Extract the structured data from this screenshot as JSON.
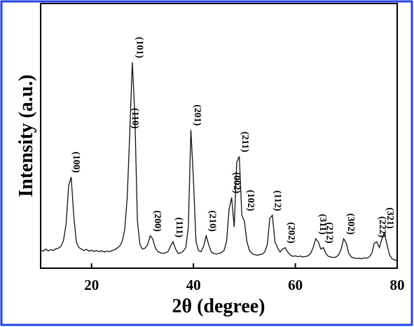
{
  "chart_data": {
    "type": "line",
    "xlabel": "2θ (degree)",
    "ylabel": "Intensity (a.u.)",
    "xlim": [
      10,
      80
    ],
    "ylim": [
      0,
      90
    ],
    "xticks": [
      20,
      40,
      60,
      80
    ],
    "x": [
      10,
      10.5,
      11,
      11.5,
      12,
      12.5,
      13,
      13.5,
      14,
      14.5,
      15,
      15.5,
      16,
      16.5,
      17,
      17.5,
      18,
      18.5,
      19,
      19.5,
      20,
      20.5,
      21,
      21.5,
      22,
      22.5,
      23,
      23.5,
      24,
      24.5,
      25,
      25.5,
      26,
      26.5,
      27,
      27.5,
      28,
      28.5,
      29,
      29.5,
      30,
      30.5,
      31,
      31.5,
      32,
      32.5,
      33,
      33.5,
      34,
      34.5,
      35,
      35.5,
      36,
      36.5,
      37,
      37.5,
      38,
      38.5,
      39,
      39.5,
      40,
      40.5,
      41,
      41.5,
      42,
      42.5,
      43,
      43.5,
      44,
      44.5,
      45,
      45.5,
      46,
      46.5,
      47,
      47.5,
      48,
      48.5,
      49,
      49.5,
      50,
      50.5,
      51,
      51.5,
      52,
      52.5,
      53,
      53.5,
      54,
      54.5,
      55,
      55.5,
      56,
      56.5,
      57,
      57.5,
      58,
      58.5,
      59,
      59.5,
      60,
      60.5,
      61,
      61.5,
      62,
      62.5,
      63,
      63.5,
      64,
      64.5,
      65,
      65.5,
      66,
      66.5,
      67,
      67.5,
      68,
      68.5,
      69,
      69.5,
      70,
      70.5,
      71,
      71.5,
      72,
      72.5,
      73,
      73.5,
      74,
      74.5,
      75,
      75.5,
      76,
      76.5,
      77,
      77.5,
      78,
      78.5,
      79,
      79.5,
      80
    ],
    "series": [
      {
        "color": "#111111",
        "values": [
          6.2,
          5.8,
          6.5,
          5.9,
          6.3,
          6.0,
          6.6,
          6.8,
          7.5,
          9.5,
          15,
          28,
          31,
          18,
          9,
          7,
          6.5,
          6.0,
          6.4,
          5.8,
          6.1,
          5.7,
          6.0,
          5.6,
          5.9,
          5.5,
          5.8,
          5.6,
          6.0,
          6.2,
          6.8,
          7.5,
          9,
          13,
          24,
          46,
          70,
          52,
          16,
          8,
          6.5,
          6.8,
          8,
          11,
          10,
          7,
          5.6,
          5.3,
          5.0,
          5.2,
          5.6,
          7.5,
          9,
          6.5,
          5.0,
          5.2,
          5.8,
          7,
          14,
          47,
          30,
          9,
          6,
          5.6,
          7.5,
          11,
          8,
          5.5,
          5.0,
          4.8,
          5.0,
          5.3,
          6,
          9,
          20,
          24,
          14,
          36,
          38,
          18,
          16,
          9,
          6,
          5,
          4.6,
          4.4,
          4.6,
          4.8,
          5.5,
          8,
          17,
          18,
          9,
          7,
          5.5,
          6.5,
          7,
          5.5,
          4.5,
          4.0,
          4.2,
          3.9,
          4.1,
          3.8,
          4.0,
          4.2,
          5,
          7,
          10,
          9,
          6.5,
          7,
          5,
          4,
          3.8,
          3.6,
          3.8,
          4.5,
          6.5,
          10,
          8.5,
          5,
          3.8,
          3.5,
          3.3,
          3.4,
          3.2,
          3.5,
          3.4,
          3.8,
          5,
          8.5,
          9,
          7,
          10,
          12,
          8,
          4.5,
          3.2,
          2.8,
          2.6
        ]
      }
    ],
    "annotations": [
      {
        "text": "(100)",
        "x": 15.8
      },
      {
        "text": "(110)",
        "x": 27.3
      },
      {
        "text": "(101)",
        "x": 28.2
      },
      {
        "text": "(200)",
        "x": 31.7
      },
      {
        "text": "(111)",
        "x": 36
      },
      {
        "text": "(201)",
        "x": 39.6
      },
      {
        "text": "(210)",
        "x": 42.5
      },
      {
        "text": "(002)",
        "x": 47.3
      },
      {
        "text": "(211)",
        "x": 48.9
      },
      {
        "text": "(102)",
        "x": 50
      },
      {
        "text": "(112)",
        "x": 55.3
      },
      {
        "text": "(202)",
        "x": 58
      },
      {
        "text": "(311)",
        "x": 64.2
      },
      {
        "text": "(212)",
        "x": 65.5
      },
      {
        "text": "(302)",
        "x": 69.7
      },
      {
        "text": "(222)",
        "x": 75.9
      },
      {
        "text": "(321)",
        "x": 77.4
      }
    ]
  }
}
